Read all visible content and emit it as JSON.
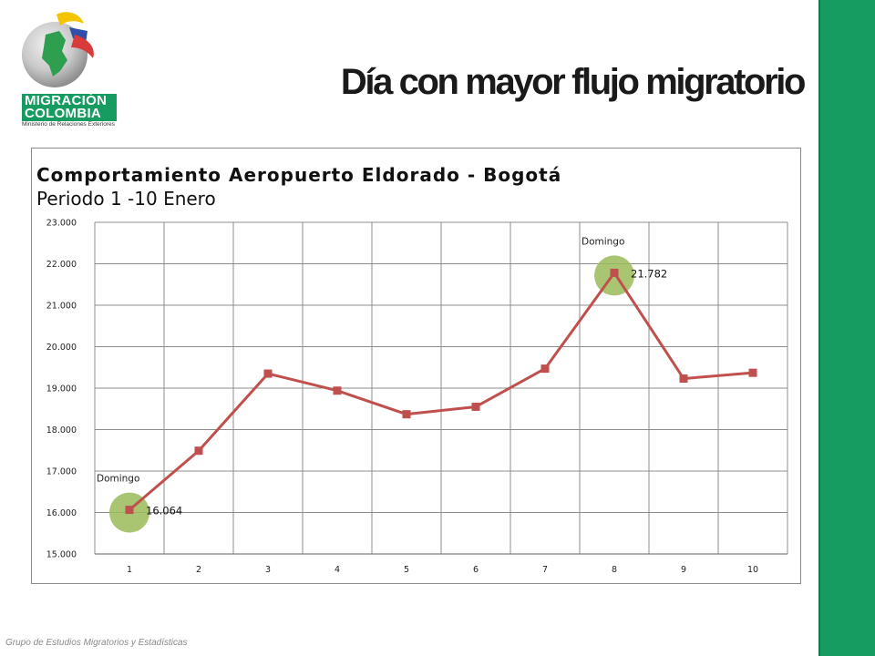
{
  "header": {
    "logo_line1": "MIGRACIÓN",
    "logo_line2": "COLOMBIA",
    "logo_subtitle": "Ministerio de Relaciones Exteriores",
    "slide_title": "Día con mayor flujo migratorio"
  },
  "footer": {
    "text": "Grupo de Estudios Migratorios y Estadísticas"
  },
  "colors": {
    "sidebar": "#169c61",
    "series": "#c0504d",
    "highlight": "#9bbb59"
  },
  "chart_data": {
    "type": "line",
    "title": "Comportamiento Aeropuerto Eldorado - Bogotá",
    "subtitle": "Periodo 1 -10 Enero",
    "x": [
      1,
      2,
      3,
      4,
      5,
      6,
      7,
      8,
      9,
      10
    ],
    "series": [
      {
        "values": [
          16064,
          17490,
          19350,
          18940,
          18370,
          18550,
          19470,
          21782,
          19230,
          19370
        ]
      }
    ],
    "ylim": [
      15000,
      23000
    ],
    "yticks": [
      "15.000",
      "16.000",
      "17.000",
      "18.000",
      "19.000",
      "20.000",
      "21.000",
      "22.000",
      "23.000"
    ],
    "grid": true,
    "legend": "none",
    "annotations": [
      {
        "x": 1,
        "label": "Domingo",
        "value_label": "16.064"
      },
      {
        "x": 8,
        "label": "Domingo",
        "value_label": "21.782"
      }
    ]
  }
}
